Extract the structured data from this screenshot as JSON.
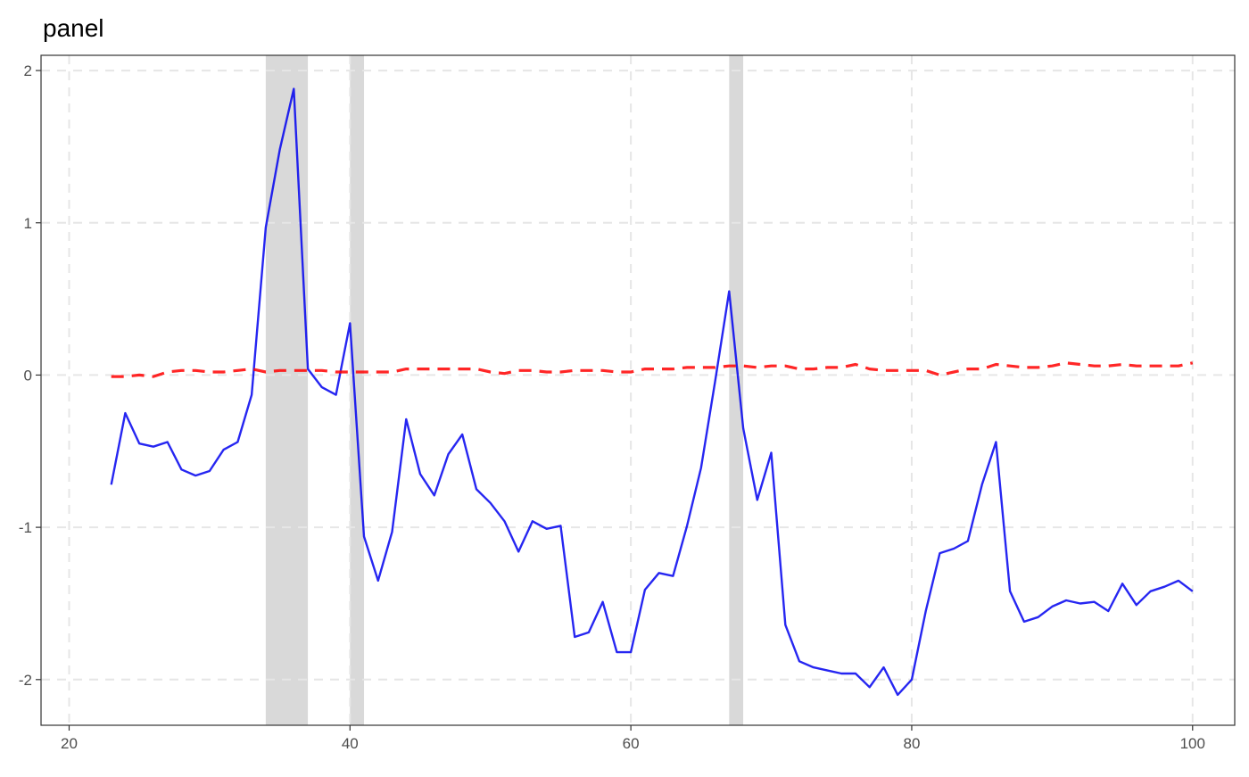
{
  "chart_data": {
    "type": "line",
    "title": "panel",
    "xlabel": "",
    "ylabel": "",
    "xlim": [
      18,
      103
    ],
    "ylim": [
      -2.3,
      2.1
    ],
    "xticks": [
      20,
      40,
      60,
      80,
      100
    ],
    "yticks": [
      -2,
      -1,
      0,
      1,
      2
    ],
    "xtick_labels": [
      "20",
      "40",
      "60",
      "80",
      "100"
    ],
    "ytick_labels": [
      "-2",
      "-1",
      "0",
      "1",
      "2"
    ],
    "grid": true,
    "legend": "none",
    "shaded_regions": [
      {
        "start": 34,
        "end": 37
      },
      {
        "start": 40,
        "end": 41
      },
      {
        "start": 67,
        "end": 68
      }
    ],
    "x": [
      23,
      24,
      25,
      26,
      27,
      28,
      29,
      30,
      31,
      32,
      33,
      34,
      35,
      36,
      37,
      38,
      39,
      40,
      41,
      42,
      43,
      44,
      45,
      46,
      47,
      48,
      49,
      50,
      51,
      52,
      53,
      54,
      55,
      56,
      57,
      58,
      59,
      60,
      61,
      62,
      63,
      64,
      65,
      66,
      67,
      68,
      69,
      70,
      71,
      72,
      73,
      74,
      75,
      76,
      77,
      78,
      79,
      80,
      81,
      82,
      83,
      84,
      85,
      86,
      87,
      88,
      89,
      90,
      91,
      92,
      93,
      94,
      95,
      96,
      97,
      98,
      99,
      100
    ],
    "series": [
      {
        "color": "#0000ee",
        "style": "solid",
        "values": [
          -0.72,
          -0.25,
          -0.45,
          -0.47,
          -0.44,
          -0.62,
          -0.66,
          -0.63,
          -0.49,
          -0.44,
          -0.13,
          0.97,
          1.48,
          1.88,
          0.04,
          -0.08,
          -0.13,
          0.34,
          -1.06,
          -1.35,
          -1.03,
          -0.29,
          -0.65,
          -0.79,
          -0.52,
          -0.39,
          -0.75,
          -0.84,
          -0.96,
          -1.16,
          -0.96,
          -1.01,
          -0.99,
          -1.72,
          -1.69,
          -1.49,
          -1.82,
          -1.82,
          -1.41,
          -1.3,
          -1.32,
          -0.99,
          -0.61,
          -0.04,
          0.55,
          -0.35,
          -0.82,
          -0.51,
          -1.64,
          -1.88,
          -1.92,
          -1.94,
          -1.96,
          -1.96,
          -2.05,
          -1.92,
          -2.1,
          -2.0,
          -1.55,
          -1.17,
          -1.14,
          -1.09,
          -0.72,
          -0.44,
          -1.42,
          -1.62,
          -1.59,
          -1.52,
          -1.48,
          -1.5,
          -1.49,
          -1.55,
          -1.37,
          -1.51,
          -1.42,
          -1.39,
          -1.35,
          -1.42
        ]
      },
      {
        "color": "#ff0000",
        "style": "dashed",
        "values": [
          -0.01,
          -0.01,
          0.0,
          -0.01,
          0.02,
          0.03,
          0.03,
          0.02,
          0.02,
          0.03,
          0.04,
          0.02,
          0.03,
          0.03,
          0.03,
          0.03,
          0.02,
          0.02,
          0.02,
          0.02,
          0.02,
          0.04,
          0.04,
          0.04,
          0.04,
          0.04,
          0.04,
          0.02,
          0.01,
          0.03,
          0.03,
          0.02,
          0.02,
          0.03,
          0.03,
          0.03,
          0.02,
          0.02,
          0.04,
          0.04,
          0.04,
          0.05,
          0.05,
          0.05,
          0.06,
          0.06,
          0.05,
          0.06,
          0.06,
          0.04,
          0.04,
          0.05,
          0.05,
          0.07,
          0.04,
          0.03,
          0.03,
          0.03,
          0.03,
          0.0,
          0.02,
          0.04,
          0.04,
          0.07,
          0.06,
          0.05,
          0.05,
          0.06,
          0.08,
          0.07,
          0.06,
          0.06,
          0.07,
          0.06,
          0.06,
          0.06,
          0.06,
          0.08
        ]
      }
    ]
  }
}
